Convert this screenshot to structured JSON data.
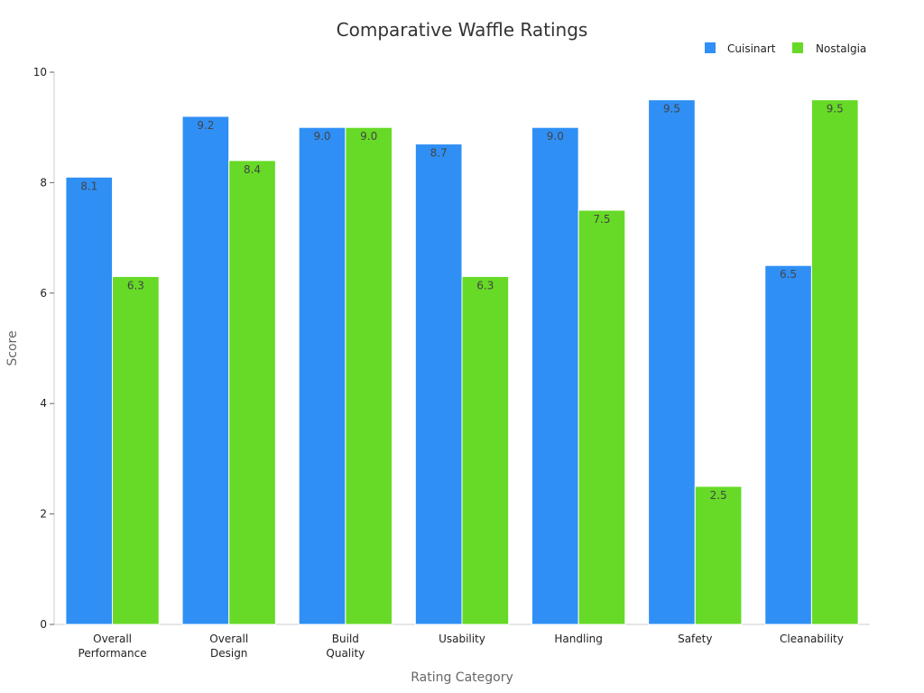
{
  "chart_data": {
    "type": "bar",
    "title": "Comparative Waffle Ratings",
    "xlabel": "Rating Category",
    "ylabel": "Score",
    "ylim": [
      0,
      10
    ],
    "yticks": [
      "0",
      "2",
      "4",
      "6",
      "8",
      "10"
    ],
    "categories": [
      [
        "Overall",
        "Performance"
      ],
      [
        "Overall",
        "Design"
      ],
      [
        "Build",
        "Quality"
      ],
      [
        "Usability"
      ],
      [
        "Handling"
      ],
      [
        "Safety"
      ],
      [
        "Cleanability"
      ]
    ],
    "series": [
      {
        "name": "Cuisinart",
        "color": "#2F8FF5",
        "values": [
          8.1,
          9.2,
          9.0,
          8.7,
          9.0,
          9.5,
          6.5
        ],
        "labels": [
          "8.1",
          "9.2",
          "9.0",
          "8.7",
          "9.0",
          "9.5",
          "6.5"
        ]
      },
      {
        "name": "Nostalgia",
        "color": "#66DA26",
        "values": [
          6.3,
          8.4,
          9.0,
          6.3,
          7.5,
          2.5,
          9.5
        ],
        "labels": [
          "6.3",
          "8.4",
          "9.0",
          "6.3",
          "7.5",
          "2.5",
          "9.5"
        ]
      }
    ],
    "legend_position": "top-right",
    "grid": false
  }
}
